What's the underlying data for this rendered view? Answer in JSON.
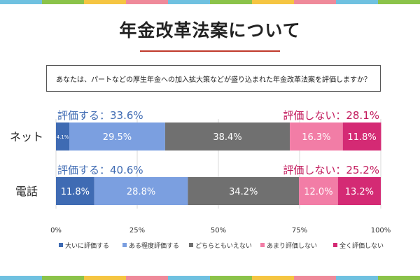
{
  "title": "年金改革法案について",
  "question": "あなたは、パートなどの厚生年金への加入拡大策などが盛り込まれた年金改革法案を評価しますか？",
  "stripe_colors": [
    "#6fc1e0",
    "#8bc34a",
    "#f5c542",
    "#ef8a9a",
    "#6fc1e0",
    "#8bc34a",
    "#f5c542",
    "#ef8a9a",
    "#6fc1e0",
    "#8bc34a"
  ],
  "chart_data": {
    "type": "bar",
    "orientation": "horizontal-stacked-100",
    "categories": [
      "ネット",
      "電話"
    ],
    "series": [
      {
        "name": "大いに評価する",
        "color": "#3f6bb3",
        "values": [
          4.1,
          11.8
        ]
      },
      {
        "name": "ある程度評価する",
        "color": "#7b9fe0",
        "values": [
          29.5,
          28.8
        ]
      },
      {
        "name": "どちらともいえない",
        "color": "#707070",
        "values": [
          38.4,
          34.2
        ]
      },
      {
        "name": "あまり評価しない",
        "color": "#f27da6",
        "values": [
          16.3,
          12.0
        ]
      },
      {
        "name": "全く評価しない",
        "color": "#d42a74",
        "values": [
          11.8,
          13.2
        ]
      }
    ],
    "value_labels": [
      [
        "4.1%",
        "29.5%",
        "38.4%",
        "16.3%",
        "11.8%"
      ],
      [
        "11.8%",
        "28.8%",
        "34.2%",
        "12.0%",
        "13.2%"
      ]
    ],
    "summary_positive": [
      "評価する：33.6%",
      "評価する：40.6%"
    ],
    "summary_negative": [
      "評価しない：28.1%",
      "評価しない：25.2%"
    ],
    "positive_color": "#3f6bb3",
    "negative_color": "#c2185b",
    "xlim": [
      0,
      100
    ],
    "xticks": [
      "0%",
      "25%",
      "50%",
      "75%",
      "100%"
    ],
    "grid": true,
    "legend_position": "bottom"
  }
}
